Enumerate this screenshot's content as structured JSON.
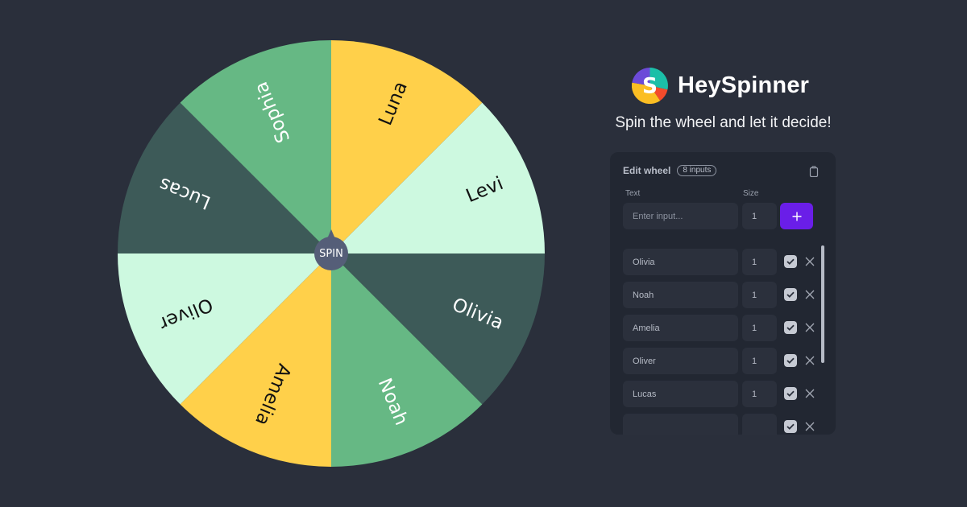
{
  "brand": {
    "name": "HeySpinner",
    "tagline": "Spin the wheel and let it decide!",
    "logo_icon": "heyspinner-logo-icon",
    "logo_colors": [
      "#1bbfa8",
      "#f44b2b",
      "#fbbe23",
      "#6c4ad8"
    ]
  },
  "wheel": {
    "spin_label": "SPIN",
    "segments": [
      {
        "label": "Luna",
        "color": "#ffd04a",
        "text_color": "#111111"
      },
      {
        "label": "Levi",
        "color": "#cdf9e0",
        "text_color": "#111111"
      },
      {
        "label": "Olivia",
        "color": "#3d5a58",
        "text_color": "#ffffff"
      },
      {
        "label": "Noah",
        "color": "#66b884",
        "text_color": "#ffffff"
      },
      {
        "label": "Amelia",
        "color": "#ffd04a",
        "text_color": "#111111"
      },
      {
        "label": "Oliver",
        "color": "#cdf9e0",
        "text_color": "#111111"
      },
      {
        "label": "Lucas",
        "color": "#3d5a58",
        "text_color": "#ffffff"
      },
      {
        "label": "Sophia",
        "color": "#66b884",
        "text_color": "#ffffff"
      }
    ]
  },
  "editor": {
    "title": "Edit wheel",
    "count_badge": "8 inputs",
    "text_col_label": "Text",
    "size_col_label": "Size",
    "new_input": {
      "placeholder": "Enter input...",
      "value": "",
      "size": "1"
    },
    "add_button_icon": "plus-icon",
    "accent_color": "#6a1ee8",
    "entries": [
      {
        "text": "Olivia",
        "size": "1",
        "enabled": true
      },
      {
        "text": "Noah",
        "size": "1",
        "enabled": true
      },
      {
        "text": "Amelia",
        "size": "1",
        "enabled": true
      },
      {
        "text": "Oliver",
        "size": "1",
        "enabled": true
      },
      {
        "text": "Lucas",
        "size": "1",
        "enabled": true
      },
      {
        "text": "",
        "size": "",
        "enabled": true
      }
    ]
  }
}
